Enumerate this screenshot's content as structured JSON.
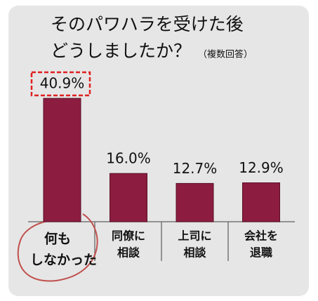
{
  "chart_data": {
    "type": "bar",
    "title": [
      "そのパワハラを受けた後",
      "どうしましたか？"
    ],
    "subtitle": "（複数回答）",
    "categories": [
      [
        "何も",
        "しなかった"
      ],
      [
        "同僚に",
        "相談"
      ],
      [
        "上司に",
        "相談"
      ],
      [
        "会社を",
        "退職"
      ]
    ],
    "values": [
      40.9,
      16.0,
      12.7,
      12.9
    ],
    "value_labels": [
      "40.9%",
      "16.0%",
      "12.7%",
      "12.9%"
    ],
    "color": "#8c1d40"
  }
}
